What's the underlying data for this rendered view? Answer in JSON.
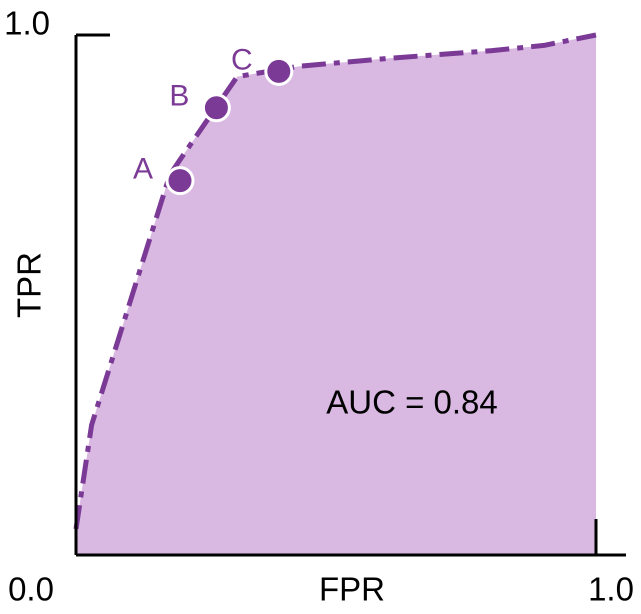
{
  "chart_data": {
    "type": "area",
    "title": "",
    "xlabel": "FPR",
    "ylabel": "TPR",
    "xlim": [
      0,
      1
    ],
    "ylim": [
      0,
      1
    ],
    "x_tick_labels": [
      {
        "value": 0,
        "label": "0.0"
      },
      {
        "value": 1,
        "label": "1.0"
      }
    ],
    "y_tick_labels": [
      {
        "value": 1,
        "label": "1.0"
      }
    ],
    "grid": false,
    "curve": {
      "x": [
        0.0,
        0.03,
        0.18,
        0.2,
        0.31,
        0.43,
        0.6,
        0.8,
        0.9,
        1.0
      ],
      "y": [
        0.05,
        0.25,
        0.73,
        0.76,
        0.92,
        0.94,
        0.955,
        0.97,
        0.98,
        1.0
      ]
    },
    "points": [
      {
        "label": "A",
        "x": 0.2,
        "y": 0.72
      },
      {
        "label": "B",
        "x": 0.27,
        "y": 0.86
      },
      {
        "label": "C",
        "x": 0.39,
        "y": 0.93
      }
    ],
    "annotation": "AUC = 0.84",
    "colors": {
      "fill": "#d9b8e2",
      "line": "#7b3a96",
      "point": "#7b3a96",
      "point_stroke": "#ffffff",
      "axis": "#000000"
    }
  }
}
